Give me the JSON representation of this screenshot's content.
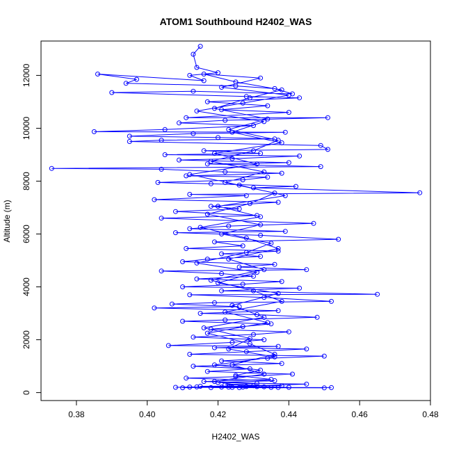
{
  "chart_data": {
    "type": "line",
    "title": "ATOM1 Southbound H2402_WAS",
    "xlabel": "H2402_WAS",
    "ylabel": "Altitude (m)",
    "xlim": [
      0.37,
      0.48
    ],
    "ylim": [
      -300,
      13300
    ],
    "x_ticks": [
      0.38,
      0.4,
      0.42,
      0.44,
      0.46,
      0.48
    ],
    "x_tick_labels": [
      "0.38",
      "0.40",
      "0.42",
      "0.44",
      "0.46",
      "0.48"
    ],
    "y_ticks": [
      0,
      2000,
      4000,
      6000,
      8000,
      10000,
      12000
    ],
    "y_tick_labels": [
      "0",
      "2000",
      "4000",
      "6000",
      "8000",
      "10000",
      "12000"
    ],
    "marker": "open-circle",
    "color": "#0000ff",
    "grid": false,
    "legend": "none",
    "series": [
      {
        "points": [
          [
            0.415,
            13100
          ],
          [
            0.413,
            12800
          ],
          [
            0.414,
            12300
          ],
          [
            0.42,
            12100
          ],
          [
            0.412,
            12000
          ],
          [
            0.416,
            11800
          ],
          [
            0.386,
            12050
          ],
          [
            0.397,
            11850
          ],
          [
            0.394,
            11700
          ],
          [
            0.425,
            11600
          ],
          [
            0.436,
            11500
          ],
          [
            0.441,
            11300
          ],
          [
            0.413,
            11400
          ],
          [
            0.39,
            11350
          ],
          [
            0.428,
            11200
          ],
          [
            0.443,
            11150
          ],
          [
            0.417,
            11000
          ],
          [
            0.434,
            10850
          ],
          [
            0.421,
            10700
          ],
          [
            0.44,
            10600
          ],
          [
            0.411,
            10400
          ],
          [
            0.451,
            10400
          ],
          [
            0.422,
            10300
          ],
          [
            0.409,
            10200
          ],
          [
            0.43,
            10100
          ],
          [
            0.405,
            9950
          ],
          [
            0.385,
            9870
          ],
          [
            0.439,
            9850
          ],
          [
            0.413,
            9800
          ],
          [
            0.395,
            9700
          ],
          [
            0.42,
            9650
          ],
          [
            0.436,
            9600
          ],
          [
            0.404,
            9550
          ],
          [
            0.395,
            9500
          ],
          [
            0.449,
            9350
          ],
          [
            0.451,
            9200
          ],
          [
            0.416,
            9150
          ],
          [
            0.432,
            9050
          ],
          [
            0.405,
            9000
          ],
          [
            0.443,
            8950
          ],
          [
            0.424,
            8850
          ],
          [
            0.409,
            8800
          ],
          [
            0.44,
            8700
          ],
          [
            0.417,
            8650
          ],
          [
            0.449,
            8550
          ],
          [
            0.373,
            8480
          ],
          [
            0.404,
            8450
          ],
          [
            0.422,
            8350
          ],
          [
            0.438,
            8300
          ],
          [
            0.411,
            8200
          ],
          [
            0.434,
            8150
          ],
          [
            0.427,
            8050
          ],
          [
            0.403,
            7950
          ],
          [
            0.418,
            7900
          ],
          [
            0.442,
            7800
          ],
          [
            0.43,
            7750
          ],
          [
            0.477,
            7560
          ],
          [
            0.412,
            7500
          ],
          [
            0.428,
            7450
          ],
          [
            0.402,
            7300
          ],
          [
            0.437,
            7200
          ],
          [
            0.418,
            7050
          ],
          [
            0.426,
            6950
          ],
          [
            0.408,
            6850
          ],
          [
            0.431,
            6700
          ],
          [
            0.404,
            6600
          ],
          [
            0.447,
            6400
          ],
          [
            0.423,
            6300
          ],
          [
            0.412,
            6200
          ],
          [
            0.439,
            6100
          ],
          [
            0.408,
            6050
          ],
          [
            0.432,
            5950
          ],
          [
            0.454,
            5800
          ],
          [
            0.419,
            5700
          ],
          [
            0.427,
            5550
          ],
          [
            0.411,
            5450
          ],
          [
            0.437,
            5350
          ],
          [
            0.421,
            5250
          ],
          [
            0.432,
            5150
          ],
          [
            0.417,
            5050
          ],
          [
            0.41,
            4950
          ],
          [
            0.436,
            4850
          ],
          [
            0.426,
            4750
          ],
          [
            0.445,
            4650
          ],
          [
            0.404,
            4600
          ],
          [
            0.421,
            4500
          ],
          [
            0.43,
            4400
          ],
          [
            0.414,
            4300
          ],
          [
            0.438,
            4200
          ],
          [
            0.427,
            4100
          ],
          [
            0.41,
            4000
          ],
          [
            0.443,
            3950
          ],
          [
            0.421,
            3850
          ],
          [
            0.465,
            3720
          ],
          [
            0.412,
            3700
          ],
          [
            0.433,
            3600
          ],
          [
            0.452,
            3450
          ],
          [
            0.419,
            3400
          ],
          [
            0.407,
            3350
          ],
          [
            0.426,
            3250
          ],
          [
            0.402,
            3200
          ],
          [
            0.437,
            3100
          ],
          [
            0.415,
            3000
          ],
          [
            0.431,
            2950
          ],
          [
            0.448,
            2850
          ],
          [
            0.422,
            2750
          ],
          [
            0.41,
            2700
          ],
          [
            0.435,
            2600
          ],
          [
            0.427,
            2500
          ],
          [
            0.418,
            2400
          ],
          [
            0.44,
            2300
          ],
          [
            0.43,
            2200
          ],
          [
            0.413,
            2100
          ],
          [
            0.433,
            2000
          ],
          [
            0.424,
            1900
          ],
          [
            0.406,
            1780
          ],
          [
            0.437,
            1750
          ],
          [
            0.419,
            1700
          ],
          [
            0.445,
            1650
          ],
          [
            0.428,
            1550
          ],
          [
            0.412,
            1450
          ],
          [
            0.45,
            1380
          ],
          [
            0.434,
            1300
          ],
          [
            0.421,
            1200
          ],
          [
            0.438,
            1100
          ],
          [
            0.413,
            1000
          ],
          [
            0.429,
            900
          ],
          [
            0.417,
            800
          ],
          [
            0.441,
            700
          ],
          [
            0.425,
            600
          ],
          [
            0.411,
            550
          ],
          [
            0.436,
            450
          ],
          [
            0.42,
            380
          ],
          [
            0.445,
            320
          ],
          [
            0.43,
            260
          ],
          [
            0.408,
            200
          ],
          [
            0.452,
            190
          ],
          [
            0.424,
            200
          ],
          [
            0.412,
            210
          ],
          [
            0.44,
            200
          ],
          [
            0.433,
            220
          ],
          [
            0.418,
            190
          ],
          [
            0.45,
            180
          ],
          [
            0.427,
            210
          ],
          [
            0.415,
            240
          ],
          [
            0.438,
            260
          ],
          [
            0.422,
            300
          ],
          [
            0.431,
            350
          ],
          [
            0.416,
            420
          ],
          [
            0.435,
            500
          ],
          [
            0.425,
            650
          ],
          [
            0.432,
            850
          ],
          [
            0.419,
            1050
          ],
          [
            0.436,
            1350
          ],
          [
            0.423,
            1650
          ],
          [
            0.429,
            2050
          ],
          [
            0.416,
            2450
          ],
          [
            0.433,
            2850
          ],
          [
            0.424,
            3300
          ],
          [
            0.437,
            3750
          ],
          [
            0.42,
            4150
          ],
          [
            0.431,
            4550
          ],
          [
            0.414,
            4900
          ],
          [
            0.428,
            5300
          ],
          [
            0.435,
            5650
          ],
          [
            0.421,
            6000
          ],
          [
            0.432,
            6350
          ],
          [
            0.417,
            6750
          ],
          [
            0.429,
            7150
          ],
          [
            0.436,
            7550
          ],
          [
            0.422,
            7950
          ],
          [
            0.433,
            8350
          ],
          [
            0.418,
            8750
          ],
          [
            0.43,
            9150
          ],
          [
            0.437,
            9550
          ],
          [
            0.423,
            9950
          ],
          [
            0.434,
            10350
          ],
          [
            0.419,
            10750
          ],
          [
            0.429,
            11150
          ],
          [
            0.438,
            11450
          ],
          [
            0.425,
            11750
          ],
          [
            0.416,
            12050
          ],
          [
            0.432,
            11900
          ],
          [
            0.421,
            11550
          ],
          [
            0.44,
            11250
          ],
          [
            0.427,
            10950
          ],
          [
            0.414,
            10650
          ],
          [
            0.433,
            10250
          ],
          [
            0.424,
            9850
          ],
          [
            0.438,
            9450
          ],
          [
            0.419,
            9050
          ],
          [
            0.431,
            8650
          ],
          [
            0.412,
            8250
          ],
          [
            0.426,
            7850
          ],
          [
            0.439,
            7450
          ],
          [
            0.42,
            7050
          ],
          [
            0.432,
            6650
          ],
          [
            0.415,
            6250
          ],
          [
            0.428,
            5850
          ],
          [
            0.437,
            5450
          ],
          [
            0.423,
            5050
          ],
          [
            0.433,
            4650
          ],
          [
            0.418,
            4250
          ],
          [
            0.43,
            3850
          ],
          [
            0.438,
            3450
          ],
          [
            0.422,
            3050
          ],
          [
            0.434,
            2650
          ],
          [
            0.417,
            2250
          ],
          [
            0.429,
            1850
          ],
          [
            0.436,
            1450
          ],
          [
            0.424,
            1050
          ],
          [
            0.433,
            700
          ],
          [
            0.419,
            420
          ],
          [
            0.428,
            230
          ],
          [
            0.437,
            195
          ],
          [
            0.423,
            205
          ],
          [
            0.414,
            215
          ],
          [
            0.431,
            225
          ],
          [
            0.426,
            190
          ],
          [
            0.435,
            200
          ],
          [
            0.421,
            210
          ],
          [
            0.41,
            185
          ]
        ]
      }
    ]
  }
}
